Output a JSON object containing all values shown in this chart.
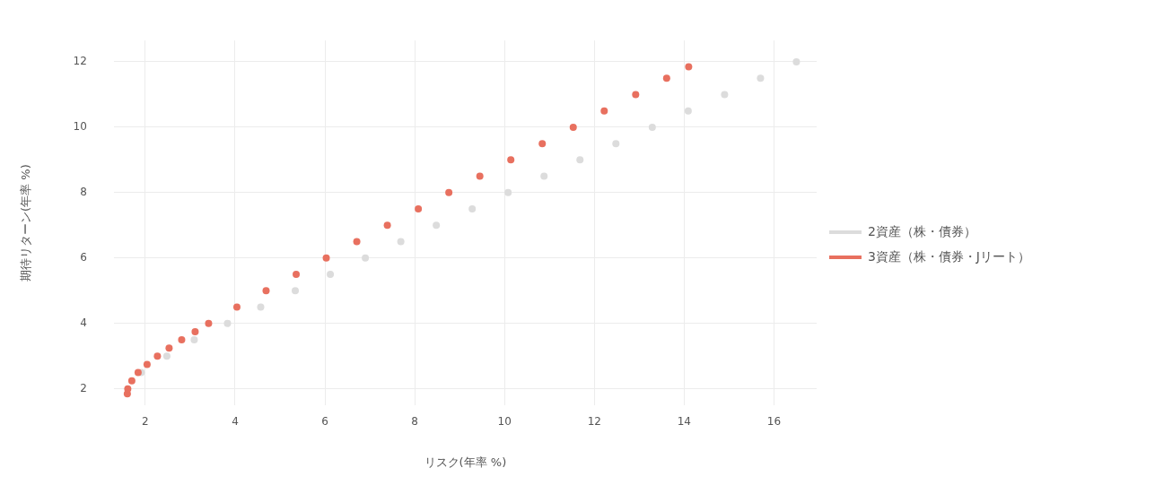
{
  "chart_data": {
    "type": "scatter",
    "xlabel": "リスク(年率 %)",
    "ylabel": "期待リターン(年率 %)",
    "xlim": [
      1.3,
      16.95
    ],
    "ylim": [
      1.5,
      12.65
    ],
    "xticks": [
      2,
      4,
      6,
      8,
      10,
      12,
      14,
      16
    ],
    "yticks": [
      2,
      4,
      6,
      8,
      10,
      12
    ],
    "grid": true,
    "legend": "right",
    "marker": "circle",
    "series": [
      {
        "name": "2資産（株・債券）",
        "color": "#dcdcdc",
        "x": [
          1.91,
          2.48,
          3.09,
          3.83,
          4.57,
          5.34,
          6.12,
          6.9,
          7.69,
          8.48,
          9.28,
          10.08,
          10.88,
          11.68,
          12.48,
          13.29,
          14.09,
          14.9,
          15.7,
          16.5
        ],
        "values": [
          2.5,
          3.0,
          3.5,
          4.0,
          4.5,
          5.0,
          5.5,
          6.0,
          6.5,
          7.0,
          7.5,
          8.0,
          8.5,
          9.0,
          9.5,
          10.0,
          10.5,
          11.0,
          11.5,
          12.0
        ]
      },
      {
        "name": "3資産（株・債券・Jリート）",
        "color": "#e8705f",
        "x": [
          1.6,
          1.61,
          1.7,
          1.84,
          2.04,
          2.27,
          2.53,
          2.81,
          3.11,
          3.41,
          4.04,
          4.69,
          5.36,
          6.03,
          6.71,
          7.39,
          8.08,
          8.76,
          9.45,
          10.14,
          10.84,
          11.53,
          12.22,
          12.92,
          13.61,
          14.1
        ],
        "values": [
          1.85,
          2.0,
          2.25,
          2.5,
          2.75,
          3.0,
          3.25,
          3.5,
          3.75,
          4.0,
          4.5,
          5.0,
          5.5,
          6.0,
          6.5,
          7.0,
          7.5,
          8.0,
          8.5,
          9.0,
          9.5,
          10.0,
          10.5,
          11.0,
          11.5,
          11.85
        ]
      }
    ]
  }
}
